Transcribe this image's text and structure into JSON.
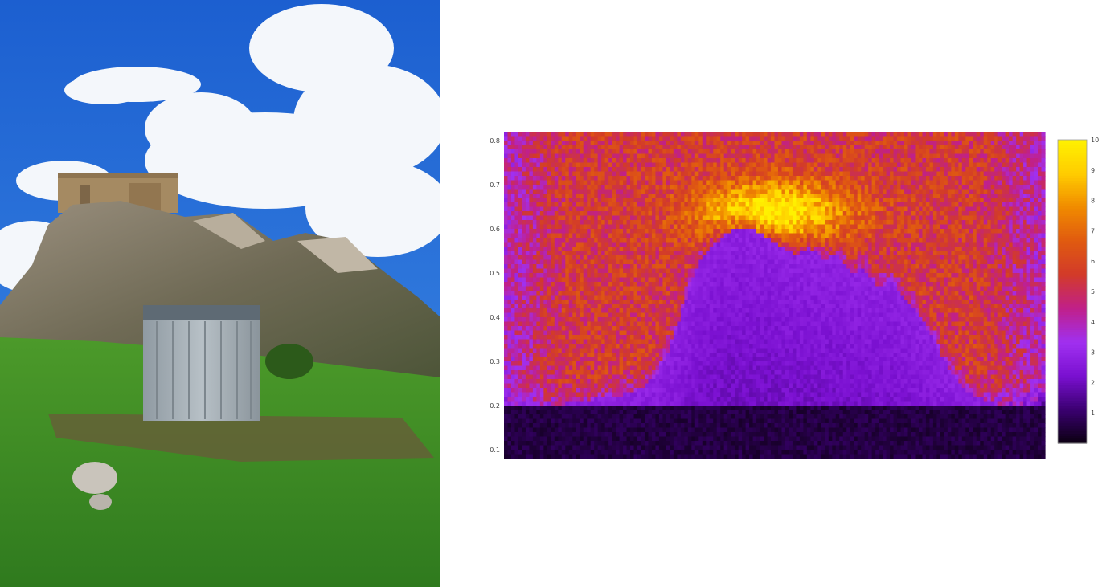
{
  "photo": {
    "subject": "detector-container-below-hilltop-castle"
  },
  "chart_data": {
    "type": "heatmap",
    "title": "",
    "xlabel": "",
    "ylabel": "",
    "y_ticks": [
      "0.1",
      "0.2",
      "0.3",
      "0.4",
      "0.5",
      "0.6",
      "0.7",
      "0.8"
    ],
    "ylim": [
      0.08,
      0.82
    ],
    "colorbar": {
      "ticks": [
        "1",
        "2",
        "3",
        "4",
        "5",
        "6",
        "7",
        "8",
        "9",
        "10"
      ],
      "range": [
        0,
        10
      ],
      "colors": [
        "#0b0010",
        "#3a0070",
        "#7a10d0",
        "#a030f0",
        "#c0208a",
        "#d23a2a",
        "#e05a10",
        "#f08a00",
        "#ffcc00",
        "#fff100"
      ],
      "placement": "right"
    },
    "x_grid_cells": 150,
    "ridge_profile": [
      0.19,
      0.19,
      0.19,
      0.19,
      0.2,
      0.21,
      0.21,
      0.22,
      0.22,
      0.23,
      0.24,
      0.27,
      0.33,
      0.43,
      0.52,
      0.56,
      0.59,
      0.6,
      0.6,
      0.58,
      0.56,
      0.54,
      0.56,
      0.53,
      0.54,
      0.5,
      0.51,
      0.47,
      0.48,
      0.44,
      0.4,
      0.35,
      0.29,
      0.24,
      0.22,
      0.21,
      0.2,
      0.2,
      0.2,
      0.2
    ],
    "background_intensity": 5.5,
    "bright_region_peak": 10,
    "shadow_intensity": 2.5,
    "ground_intensity": 0.3,
    "grid": false,
    "legend": "none"
  }
}
